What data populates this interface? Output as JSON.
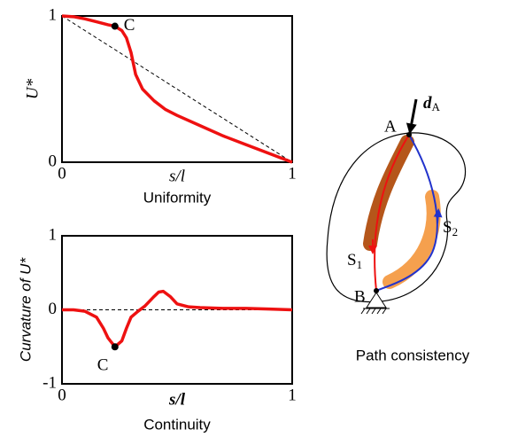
{
  "chart_data": [
    {
      "type": "line",
      "y_label": "U*",
      "x_label": "s/l",
      "caption": "Uniformity",
      "xlim": [
        0,
        1
      ],
      "ylim": [
        0,
        1
      ],
      "xticks": [
        0,
        1
      ],
      "yticks": [
        0,
        1
      ],
      "x": [
        0,
        0.05,
        0.1,
        0.15,
        0.2,
        0.23,
        0.26,
        0.28,
        0.3,
        0.32,
        0.35,
        0.4,
        0.45,
        0.5,
        0.6,
        0.7,
        0.8,
        0.9,
        1
      ],
      "series": [
        {
          "color": "#ee1111",
          "values": [
            1,
            0.995,
            0.98,
            0.96,
            0.94,
            0.93,
            0.9,
            0.85,
            0.75,
            0.6,
            0.5,
            0.42,
            0.36,
            0.32,
            0.25,
            0.18,
            0.12,
            0.06,
            0
          ]
        }
      ],
      "reference": {
        "x": [
          0,
          1
        ],
        "values": [
          1,
          0
        ]
      },
      "annotation": {
        "label": "C",
        "x": 0.23,
        "y": 0.93
      }
    },
    {
      "type": "line",
      "y_label": "Curvature of U*",
      "x_label": "s/l",
      "caption": "Continuity",
      "xlim": [
        0,
        1
      ],
      "ylim": [
        -1,
        1
      ],
      "xticks": [
        0,
        1
      ],
      "yticks": [
        -1,
        0,
        1
      ],
      "x": [
        0,
        0.05,
        0.1,
        0.15,
        0.18,
        0.2,
        0.23,
        0.26,
        0.28,
        0.3,
        0.33,
        0.36,
        0.4,
        0.42,
        0.44,
        0.47,
        0.5,
        0.55,
        0.6,
        0.7,
        0.8,
        0.9,
        1
      ],
      "series": [
        {
          "color": "#ee1111",
          "values": [
            0,
            0,
            -0.02,
            -0.1,
            -0.25,
            -0.38,
            -0.5,
            -0.42,
            -0.25,
            -0.1,
            -0.02,
            0.05,
            0.18,
            0.24,
            0.25,
            0.18,
            0.08,
            0.04,
            0.03,
            0.02,
            0.02,
            0.01,
            0
          ]
        }
      ],
      "reference": {
        "x": [
          0,
          1
        ],
        "values": [
          0,
          0
        ]
      },
      "annotation": {
        "label": "C",
        "x": 0.23,
        "y": -0.5
      }
    }
  ],
  "diagram": {
    "caption": "Path consistency",
    "point_a": "A",
    "point_b": "B",
    "load": {
      "main": "d",
      "sub": "A"
    },
    "path_1": {
      "main": "S",
      "sub": "1"
    },
    "path_2": {
      "main": "S",
      "sub": "2"
    }
  }
}
